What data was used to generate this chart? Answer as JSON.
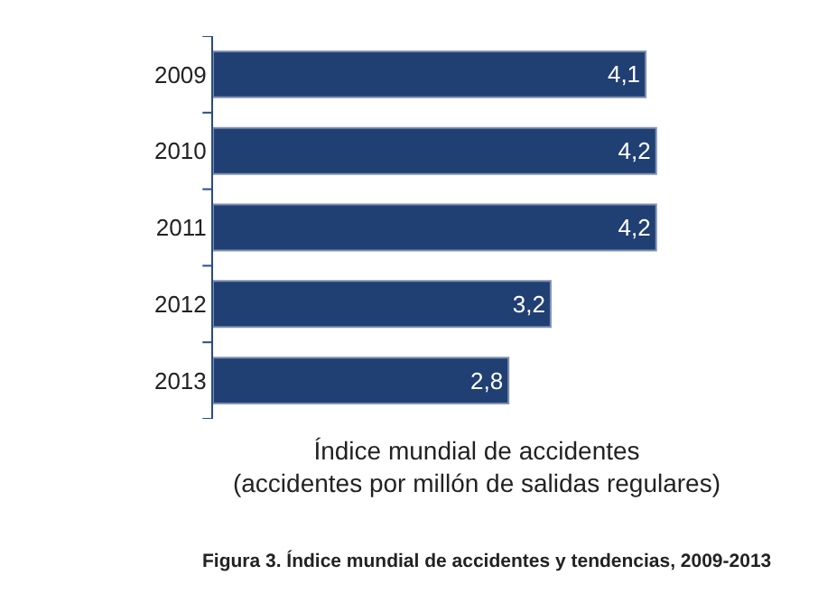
{
  "chart_data": {
    "type": "bar",
    "orientation": "horizontal",
    "categories": [
      "2009",
      "2010",
      "2011",
      "2012",
      "2013"
    ],
    "values": [
      4.1,
      4.2,
      4.2,
      3.2,
      2.8
    ],
    "value_labels": [
      "4,1",
      "4,2",
      "4,2",
      "3,2",
      "2,8"
    ],
    "color": "#203f73",
    "tick_labels": "y",
    "xlabel": "Índice mundial de accidentes\n(accidentes por millón de salidas regulares)",
    "annotations": [
      "Figura 3. Índice mundial de accidentes y tendencias, 2009-2013"
    ]
  }
}
